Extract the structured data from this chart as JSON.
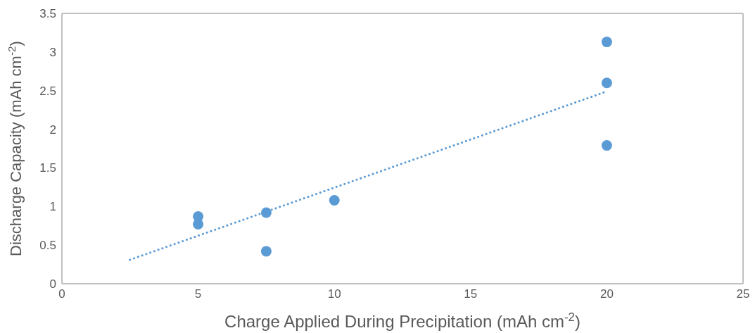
{
  "chart_data": {
    "type": "scatter",
    "xlabel": "Charge Applied During Precipitation (mAh cm$^{-2}$)",
    "ylabel": "Discharge Capacity (mAh cm$^{-2}$)",
    "xlim": [
      0,
      25
    ],
    "xticks": [
      0,
      5,
      10,
      15,
      20,
      25
    ],
    "ylim": [
      0,
      3.5
    ],
    "yticks": [
      0,
      0.5,
      1,
      1.5,
      2,
      2.5,
      3,
      3.5
    ],
    "legend": false,
    "series": [
      {
        "color": "#5b9bd5",
        "marker": "circle",
        "x": [
          5,
          5,
          7.5,
          7.5,
          10,
          20,
          20,
          20
        ],
        "values": [
          0.87,
          0.77,
          0.92,
          0.42,
          1.08,
          3.13,
          2.6,
          1.79
        ]
      },
      {
        "type": "line",
        "color": "#5b9bd5",
        "line_style": "dotted",
        "marker": "none",
        "x": [
          2.5,
          20
        ],
        "values": [
          0.31,
          2.49
        ]
      }
    ]
  }
}
